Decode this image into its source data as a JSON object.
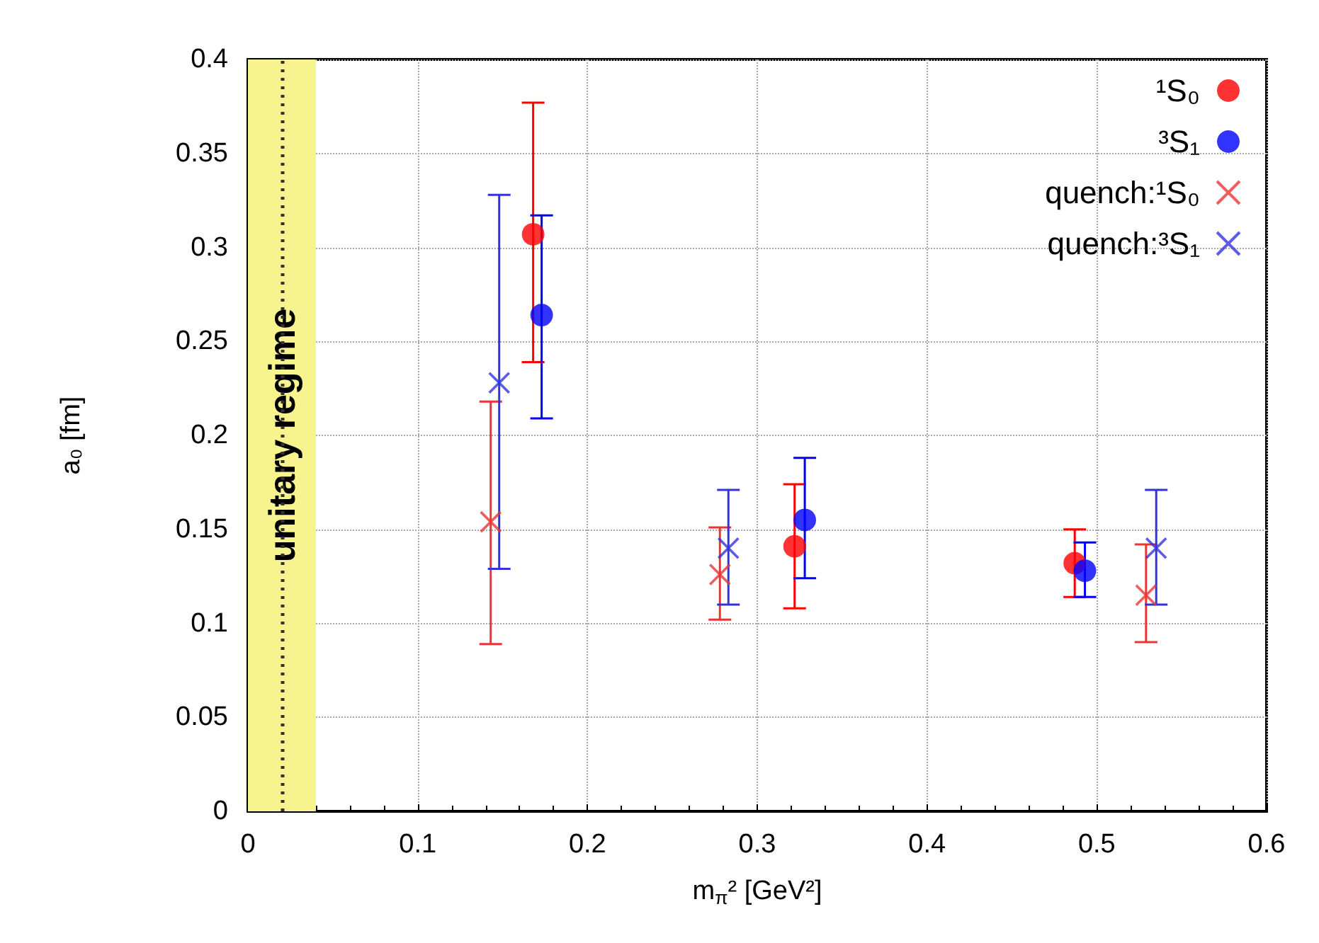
{
  "chart_data": {
    "type": "scatter",
    "xlabel": "m$_{π}$² [GeV²]",
    "ylabel": "a₀ [fm]",
    "xlim": [
      0,
      0.6
    ],
    "xticks": [
      0,
      0.1,
      0.2,
      0.3,
      0.4,
      0.5,
      0.6
    ],
    "ylim": [
      0,
      0.4
    ],
    "yticks": [
      0,
      0.05,
      0.1,
      0.15,
      0.2,
      0.25,
      0.3,
      0.35,
      0.4
    ],
    "grid": true,
    "legend": "top right",
    "series": [
      {
        "name": "¹S₀",
        "color": "#ff0000",
        "marker": "circle",
        "x": [
          0.168,
          0.322,
          0.487
        ],
        "values": [
          0.307,
          0.141,
          0.132
        ],
        "errors": [
          [
            0.239,
            0.377
          ],
          [
            0.108,
            0.174
          ],
          [
            0.114,
            0.15
          ]
        ]
      },
      {
        "name": "³S₁",
        "color": "#0000ff",
        "marker": "circle",
        "x": [
          0.173,
          0.328,
          0.493
        ],
        "values": [
          0.264,
          0.155,
          0.128
        ],
        "errors": [
          [
            0.209,
            0.317
          ],
          [
            0.124,
            0.188
          ],
          [
            0.114,
            0.143
          ]
        ]
      },
      {
        "name": "quench:¹S₀",
        "color": "#ee3333",
        "marker": "cross",
        "x": [
          0.143,
          0.278,
          0.529
        ],
        "values": [
          0.154,
          0.126,
          0.115
        ],
        "errors": [
          [
            0.089,
            0.218
          ],
          [
            0.102,
            0.151
          ],
          [
            0.09,
            0.142
          ]
        ]
      },
      {
        "name": "quench:³S₁",
        "color": "#3333dd",
        "marker": "cross",
        "x": [
          0.148,
          0.283,
          0.535
        ],
        "values": [
          0.228,
          0.14,
          0.14
        ],
        "errors": [
          [
            0.129,
            0.328
          ],
          [
            0.11,
            0.171
          ],
          [
            0.11,
            0.171
          ]
        ]
      }
    ],
    "bands": [
      {
        "axis": "x",
        "from": 0,
        "to": 0.04,
        "label": "unitary regime",
        "color": "#f7f48f"
      }
    ],
    "ref_lines": [
      {
        "axis": "x",
        "value": 0.02,
        "color": "#333333",
        "line_style": "dotted"
      }
    ]
  }
}
